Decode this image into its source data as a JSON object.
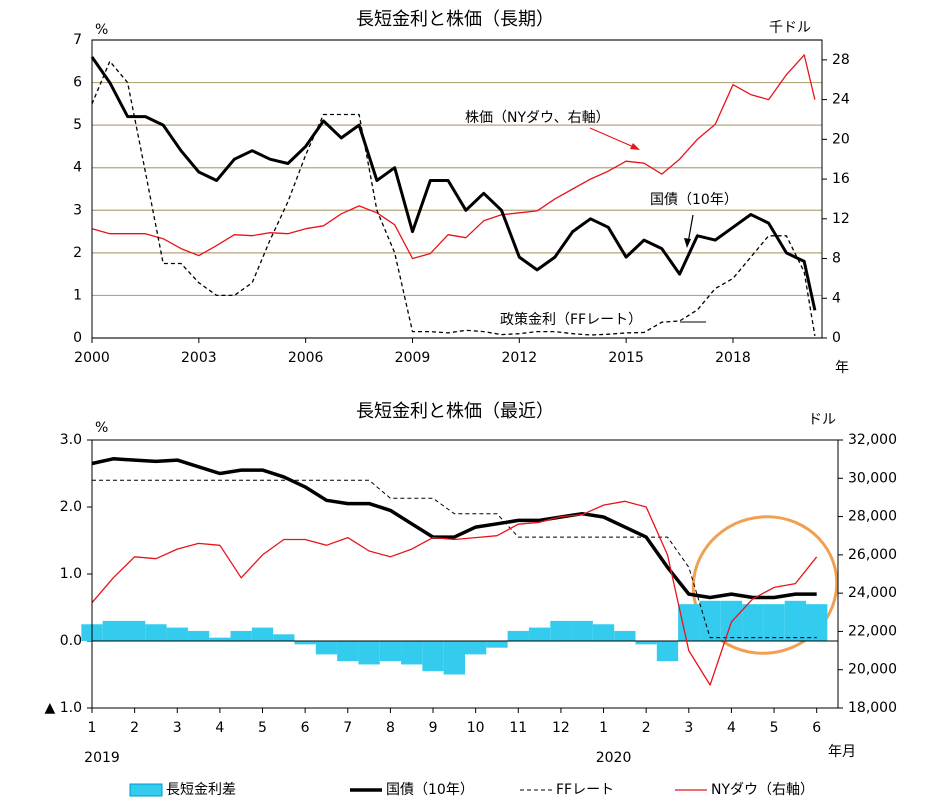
{
  "chart_data": [
    {
      "type": "line",
      "title": "長短金利と株価（長期）",
      "y_label": "%",
      "y2_label": "千ドル",
      "x_label": "年",
      "xlim": [
        2000,
        2020.5
      ],
      "xticks": [
        2000,
        2003,
        2006,
        2009,
        2012,
        2015,
        2018
      ],
      "ylim": [
        0,
        7
      ],
      "yticks": [
        0,
        1,
        2,
        3,
        4,
        5,
        6,
        7
      ],
      "y2lim": [
        0,
        30
      ],
      "y2ticks": [
        0,
        4,
        8,
        12,
        16,
        20,
        24,
        28
      ],
      "grid": true,
      "grid_color": "#b5a57a",
      "x": [
        2000,
        2000.5,
        2001,
        2001.5,
        2002,
        2002.5,
        2003,
        2003.5,
        2004,
        2004.5,
        2005,
        2005.5,
        2006,
        2006.5,
        2007,
        2007.5,
        2008,
        2008.5,
        2009,
        2009.5,
        2010,
        2010.5,
        2011,
        2011.5,
        2012,
        2012.5,
        2013,
        2013.5,
        2014,
        2014.5,
        2015,
        2015.5,
        2016,
        2016.5,
        2017,
        2017.5,
        2018,
        2018.5,
        2019,
        2019.5,
        2020,
        2020.3
      ],
      "series": [
        {
          "color": "#000000",
          "line_width": 3,
          "dash": false,
          "axis": "y",
          "values": [
            6.6,
            6.0,
            5.2,
            5.2,
            5.0,
            4.4,
            3.9,
            3.7,
            4.2,
            4.4,
            4.2,
            4.1,
            4.5,
            5.1,
            4.7,
            5.0,
            3.7,
            4.0,
            2.5,
            3.7,
            3.7,
            3.0,
            3.4,
            3.0,
            1.9,
            1.6,
            1.9,
            2.5,
            2.8,
            2.6,
            1.9,
            2.3,
            2.1,
            1.5,
            2.4,
            2.3,
            2.6,
            2.9,
            2.7,
            2.0,
            1.8,
            0.65
          ]
        },
        {
          "color": "#000000",
          "line_width": 1.3,
          "dash": true,
          "axis": "y",
          "values": [
            5.5,
            6.5,
            6.0,
            3.9,
            1.75,
            1.75,
            1.3,
            1.0,
            1.0,
            1.3,
            2.3,
            3.2,
            4.3,
            5.25,
            5.25,
            5.25,
            3.0,
            2.0,
            0.15,
            0.15,
            0.12,
            0.18,
            0.15,
            0.08,
            0.1,
            0.15,
            0.15,
            0.1,
            0.07,
            0.09,
            0.12,
            0.13,
            0.37,
            0.4,
            0.66,
            1.16,
            1.4,
            1.9,
            2.4,
            2.4,
            1.55,
            0.05
          ]
        },
        {
          "color": "#e8141a",
          "line_width": 1.3,
          "dash": false,
          "axis": "y2",
          "values": [
            11,
            10.5,
            10.5,
            10.5,
            10,
            9,
            8.3,
            9.3,
            10.4,
            10.3,
            10.6,
            10.5,
            11,
            11.3,
            12.5,
            13.3,
            12.6,
            11.4,
            8.0,
            8.5,
            10.4,
            10.1,
            11.8,
            12.4,
            12.6,
            12.8,
            14.0,
            15.0,
            16.0,
            16.8,
            17.8,
            17.6,
            16.5,
            18.0,
            20.0,
            21.5,
            25.5,
            24.5,
            24.0,
            26.5,
            28.5,
            24.0
          ]
        }
      ],
      "annotations": [
        {
          "text": "株価（NYダウ、右軸）",
          "color": "#e8141a"
        },
        {
          "text": "国債（10年）",
          "color": "#000000"
        },
        {
          "text": "政策金利（FFレート）",
          "color": "#000000"
        }
      ]
    },
    {
      "type": "combo",
      "title": "長短金利と株価（最近）",
      "y_label": "%",
      "y2_label": "ドル",
      "x_label": "年月",
      "xlim": [
        0,
        17.5
      ],
      "xticks": [
        {
          "value": 0,
          "label": "1"
        },
        {
          "value": 1,
          "label": "2"
        },
        {
          "value": 2,
          "label": "3"
        },
        {
          "value": 3,
          "label": "4"
        },
        {
          "value": 4,
          "label": "5"
        },
        {
          "value": 5,
          "label": "6"
        },
        {
          "value": 6,
          "label": "7"
        },
        {
          "value": 7,
          "label": "8"
        },
        {
          "value": 8,
          "label": "9"
        },
        {
          "value": 9,
          "label": "10"
        },
        {
          "value": 10,
          "label": "11"
        },
        {
          "value": 11,
          "label": "12"
        },
        {
          "value": 12,
          "label": "1"
        },
        {
          "value": 13,
          "label": "2"
        },
        {
          "value": 14,
          "label": "3"
        },
        {
          "value": 15,
          "label": "4"
        },
        {
          "value": 16,
          "label": "5"
        },
        {
          "value": 17,
          "label": "6"
        }
      ],
      "x_group_labels": [
        {
          "value": 0,
          "label": "2019"
        },
        {
          "value": 12,
          "label": "2020"
        }
      ],
      "ylim": [
        -1,
        3
      ],
      "yticks": [
        {
          "value": -1,
          "label": "▲ 1.0"
        },
        {
          "value": 0,
          "label": "0.0"
        },
        {
          "value": 1,
          "label": "1.0"
        },
        {
          "value": 2,
          "label": "2.0"
        },
        {
          "value": 3,
          "label": "3.0"
        }
      ],
      "y2lim": [
        18000,
        32000
      ],
      "y2ticks": [
        {
          "value": 18000,
          "label": "18,000"
        },
        {
          "value": 20000,
          "label": "20,000"
        },
        {
          "value": 22000,
          "label": "22,000"
        },
        {
          "value": 24000,
          "label": "24,000"
        },
        {
          "value": 26000,
          "label": "26,000"
        },
        {
          "value": 28000,
          "label": "28,000"
        },
        {
          "value": 30000,
          "label": "30,000"
        },
        {
          "value": 32000,
          "label": "32,000"
        }
      ],
      "grid": false,
      "zero_line": true,
      "legend": "bottom",
      "x": [
        0,
        0.5,
        1,
        1.5,
        2,
        2.5,
        3,
        3.5,
        4,
        4.5,
        5,
        5.5,
        6,
        6.5,
        7,
        7.5,
        8,
        8.5,
        9,
        9.5,
        10,
        10.5,
        11,
        11.5,
        12,
        12.5,
        13,
        13.5,
        14,
        14.5,
        15,
        15.5,
        16,
        16.5,
        17
      ],
      "series": [
        {
          "name": "長短金利差",
          "kind": "bar",
          "color": "#33ccee",
          "axis": "y",
          "values": [
            0.25,
            0.3,
            0.3,
            0.25,
            0.2,
            0.15,
            0.05,
            0.15,
            0.2,
            0.1,
            -0.05,
            -0.2,
            -0.3,
            -0.35,
            -0.3,
            -0.35,
            -0.45,
            -0.5,
            -0.2,
            -0.1,
            0.15,
            0.2,
            0.3,
            0.3,
            0.25,
            0.15,
            -0.05,
            -0.3,
            0.55,
            0.6,
            0.6,
            0.55,
            0.55,
            0.6,
            0.55
          ]
        },
        {
          "name": "国債（10年）",
          "kind": "line",
          "color": "#000000",
          "line_width": 3.5,
          "dash": false,
          "axis": "y",
          "values": [
            2.65,
            2.72,
            2.7,
            2.68,
            2.7,
            2.6,
            2.5,
            2.55,
            2.55,
            2.45,
            2.3,
            2.1,
            2.05,
            2.05,
            1.95,
            1.75,
            1.55,
            1.55,
            1.7,
            1.75,
            1.8,
            1.8,
            1.85,
            1.9,
            1.85,
            1.7,
            1.55,
            1.1,
            0.7,
            0.65,
            0.7,
            0.65,
            0.65,
            0.7,
            0.7
          ]
        },
        {
          "name": "FFレート",
          "kind": "line",
          "color": "#000000",
          "line_width": 1,
          "dash": true,
          "axis": "y",
          "values": [
            2.4,
            2.4,
            2.4,
            2.4,
            2.4,
            2.4,
            2.4,
            2.4,
            2.4,
            2.4,
            2.4,
            2.4,
            2.4,
            2.4,
            2.13,
            2.13,
            2.13,
            1.9,
            1.9,
            1.9,
            1.55,
            1.55,
            1.55,
            1.55,
            1.55,
            1.55,
            1.55,
            1.55,
            1.1,
            0.05,
            0.05,
            0.05,
            0.05,
            0.05,
            0.05
          ]
        },
        {
          "name": "NYダウ（右軸）",
          "kind": "line",
          "color": "#e8141a",
          "line_width": 1.3,
          "dash": false,
          "axis": "y2",
          "values": [
            23500,
            24800,
            25900,
            25800,
            26300,
            26600,
            26500,
            24800,
            26000,
            26800,
            26800,
            26500,
            26900,
            26200,
            25900,
            26300,
            26900,
            26800,
            26900,
            27000,
            27600,
            27700,
            28000,
            28100,
            28600,
            28800,
            28500,
            26000,
            21000,
            19200,
            22500,
            23700,
            24300,
            24500,
            25900
          ]
        }
      ]
    }
  ]
}
